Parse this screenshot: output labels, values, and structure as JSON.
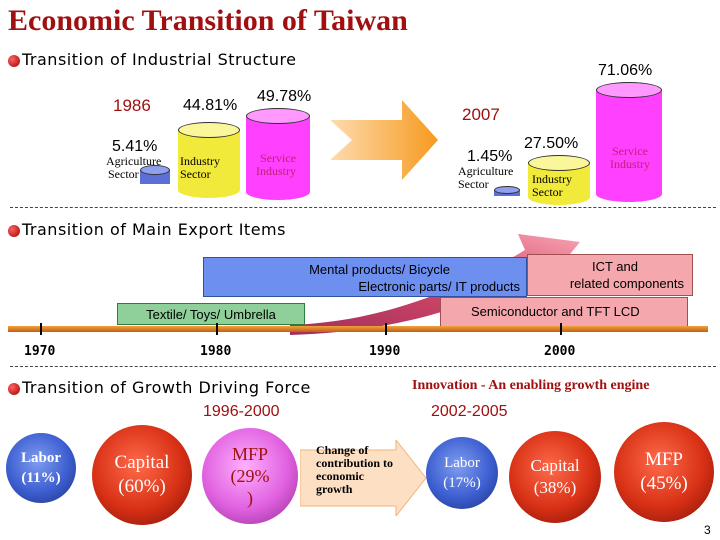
{
  "title": "Economic Transition of Taiwan",
  "industrial": {
    "heading": "Transition of Industrial Structure",
    "year_1986": "1986",
    "year_2007": "2007",
    "v1986": {
      "agriculture": "5.41%",
      "industry": "44.81%",
      "service": "49.78%"
    },
    "v2007": {
      "agriculture": "1.45%",
      "industry": "27.50%",
      "service": "71.06%"
    },
    "labels": {
      "agriculture_1": "Agriculture",
      "agriculture_2": "Sector",
      "industry_1": "Industry",
      "industry_2": "Sector",
      "service_1": "Service",
      "service_2": "Industry"
    }
  },
  "exports": {
    "heading": "Transition of Main Export Items",
    "blue_line1": "Mental products/ Bicycle",
    "blue_line2": "Electronic parts/ IT products",
    "pink_ict_line1": "ICT and",
    "pink_ict_line2": "related components",
    "pink_semi": "Semiconductor and TFT LCD",
    "green": "Textile/ Toys/ Umbrella",
    "timeline": [
      "1970",
      "1980",
      "1990",
      "2000"
    ]
  },
  "growth": {
    "heading": "Transition of Growth Driving Force",
    "subheading": "Innovation - An enabling  growth engine",
    "period1": "1996-2000",
    "period2": "2002-2005",
    "change_line1": "Change of",
    "change_line2": "contribution to",
    "change_line3": "economic",
    "change_line4": "growth",
    "p1": {
      "labor_1": "Labor",
      "labor_2": "(11%)",
      "capital_1": "Capital",
      "capital_2": "(60%)",
      "mfp_1": "MFP",
      "mfp_2": "(29%",
      "mfp_3": ")"
    },
    "p2": {
      "labor_1": "Labor",
      "labor_2": "(17%)",
      "capital_1": "Capital",
      "capital_2": "(38%)",
      "mfp_1": "MFP",
      "mfp_2": "(45%)"
    }
  },
  "page_number": "3",
  "colors": {
    "title_red": "#a01010",
    "cylinder_blue": "#5b6fd6",
    "cylinder_yellow": "#f2ea3a",
    "cylinder_pink": "#ff40ff",
    "arrow_orange": "#f79a1e",
    "timeline_orange": "#e07a1a"
  }
}
